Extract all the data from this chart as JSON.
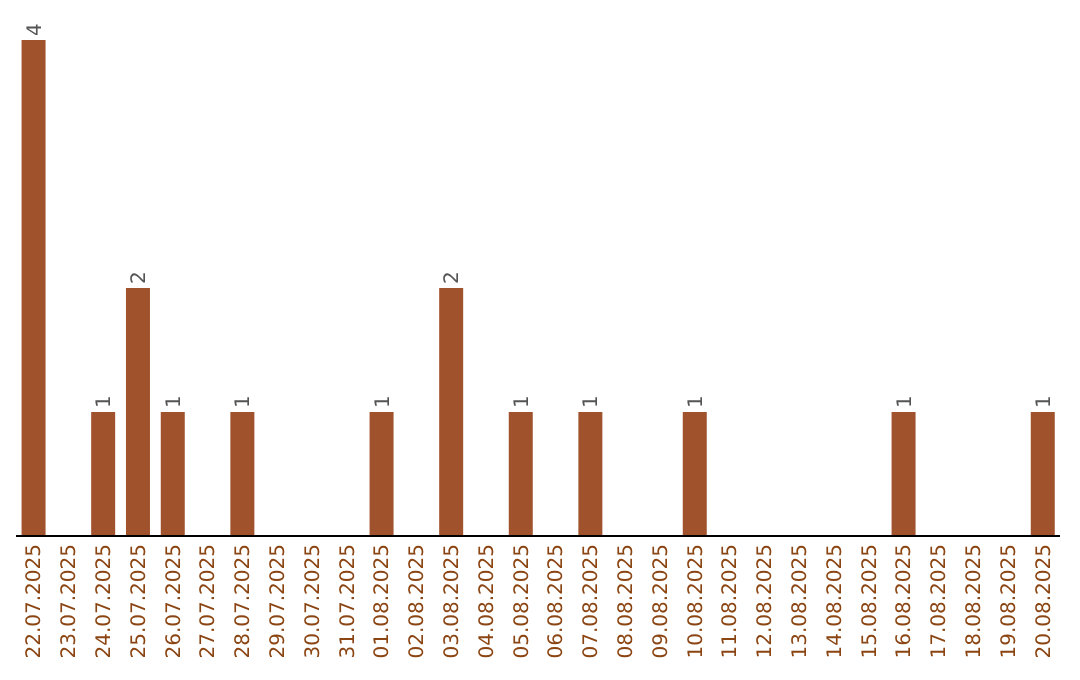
{
  "chart_data": {
    "type": "bar",
    "categories": [
      "22.07.2025",
      "23.07.2025",
      "24.07.2025",
      "25.07.2025",
      "26.07.2025",
      "27.07.2025",
      "28.07.2025",
      "29.07.2025",
      "30.07.2025",
      "31.07.2025",
      "01.08.2025",
      "02.08.2025",
      "03.08.2025",
      "04.08.2025",
      "05.08.2025",
      "06.08.2025",
      "07.08.2025",
      "08.08.2025",
      "09.08.2025",
      "10.08.2025",
      "11.08.2025",
      "12.08.2025",
      "13.08.2025",
      "14.08.2025",
      "15.08.2025",
      "16.08.2025",
      "17.08.2025",
      "18.08.2025",
      "19.08.2025",
      "20.08.2025"
    ],
    "values": [
      4,
      0,
      1,
      2,
      1,
      0,
      1,
      0,
      0,
      0,
      1,
      0,
      2,
      0,
      1,
      0,
      1,
      0,
      0,
      1,
      0,
      0,
      0,
      0,
      0,
      1,
      0,
      0,
      0,
      1
    ],
    "value_labels": [
      "4",
      null,
      "1",
      "2",
      "1",
      null,
      "1",
      null,
      null,
      null,
      "1",
      null,
      "2",
      null,
      "1",
      null,
      "1",
      null,
      null,
      "1",
      null,
      null,
      null,
      null,
      null,
      "1",
      null,
      null,
      null,
      "1"
    ],
    "color": "#a0522d",
    "grid": false,
    "legend": false
  }
}
